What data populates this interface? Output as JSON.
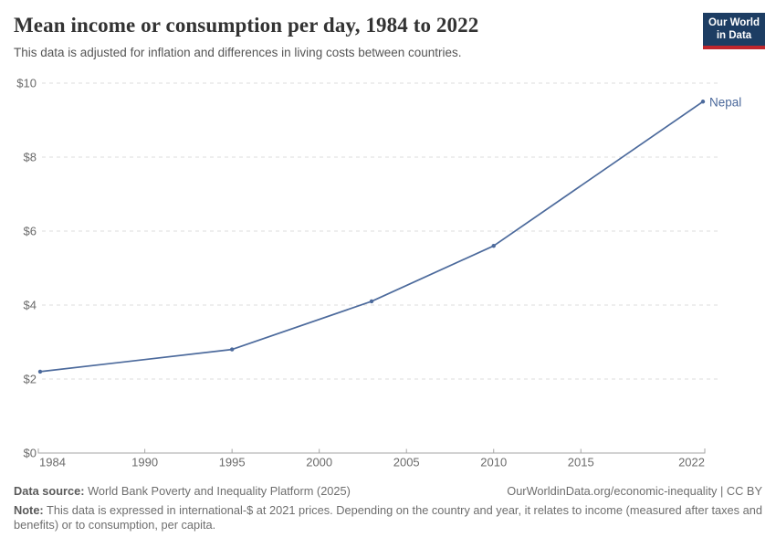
{
  "header": {
    "title": "Mean income or consumption per day, 1984 to 2022",
    "subtitle": "This data is adjusted for inflation and differences in living costs between countries.",
    "logo": {
      "line1": "Our World",
      "line2": "in Data",
      "bg_color": "#1d3d63",
      "accent_color": "#c0262d"
    }
  },
  "chart_data": {
    "type": "line",
    "title": "Mean income or consumption per day, 1984 to 2022",
    "xlabel": "",
    "ylabel": "",
    "xlim": [
      1984,
      2022
    ],
    "ylim": [
      0,
      10
    ],
    "x_ticks": [
      1984,
      1990,
      1995,
      2000,
      2005,
      2010,
      2015,
      2022
    ],
    "y_ticks": [
      0,
      2,
      4,
      6,
      8,
      10
    ],
    "y_tick_prefix": "$",
    "grid": "horizontal-dashed",
    "legend_position": "end-of-line-label",
    "series": [
      {
        "name": "Nepal",
        "color": "#4c6a9c",
        "x": [
          1984,
          1995,
          2003,
          2010,
          2022
        ],
        "values": [
          2.2,
          2.8,
          4.1,
          5.6,
          9.5
        ]
      }
    ],
    "colors": {
      "grid": "#dddddd",
      "axis": "#a6a6a6",
      "tick_label": "#6b6b6b"
    }
  },
  "footer": {
    "datasource_label": "Data source:",
    "datasource_text": " World Bank Poverty and Inequality Platform (2025)",
    "attribution": "OurWorldinData.org/economic-inequality | CC BY",
    "note_label": "Note:",
    "note_text": " This data is expressed in international-$ at 2021 prices. Depending on the country and year, it relates to income (measured after taxes and benefits) or to consumption, per capita."
  }
}
